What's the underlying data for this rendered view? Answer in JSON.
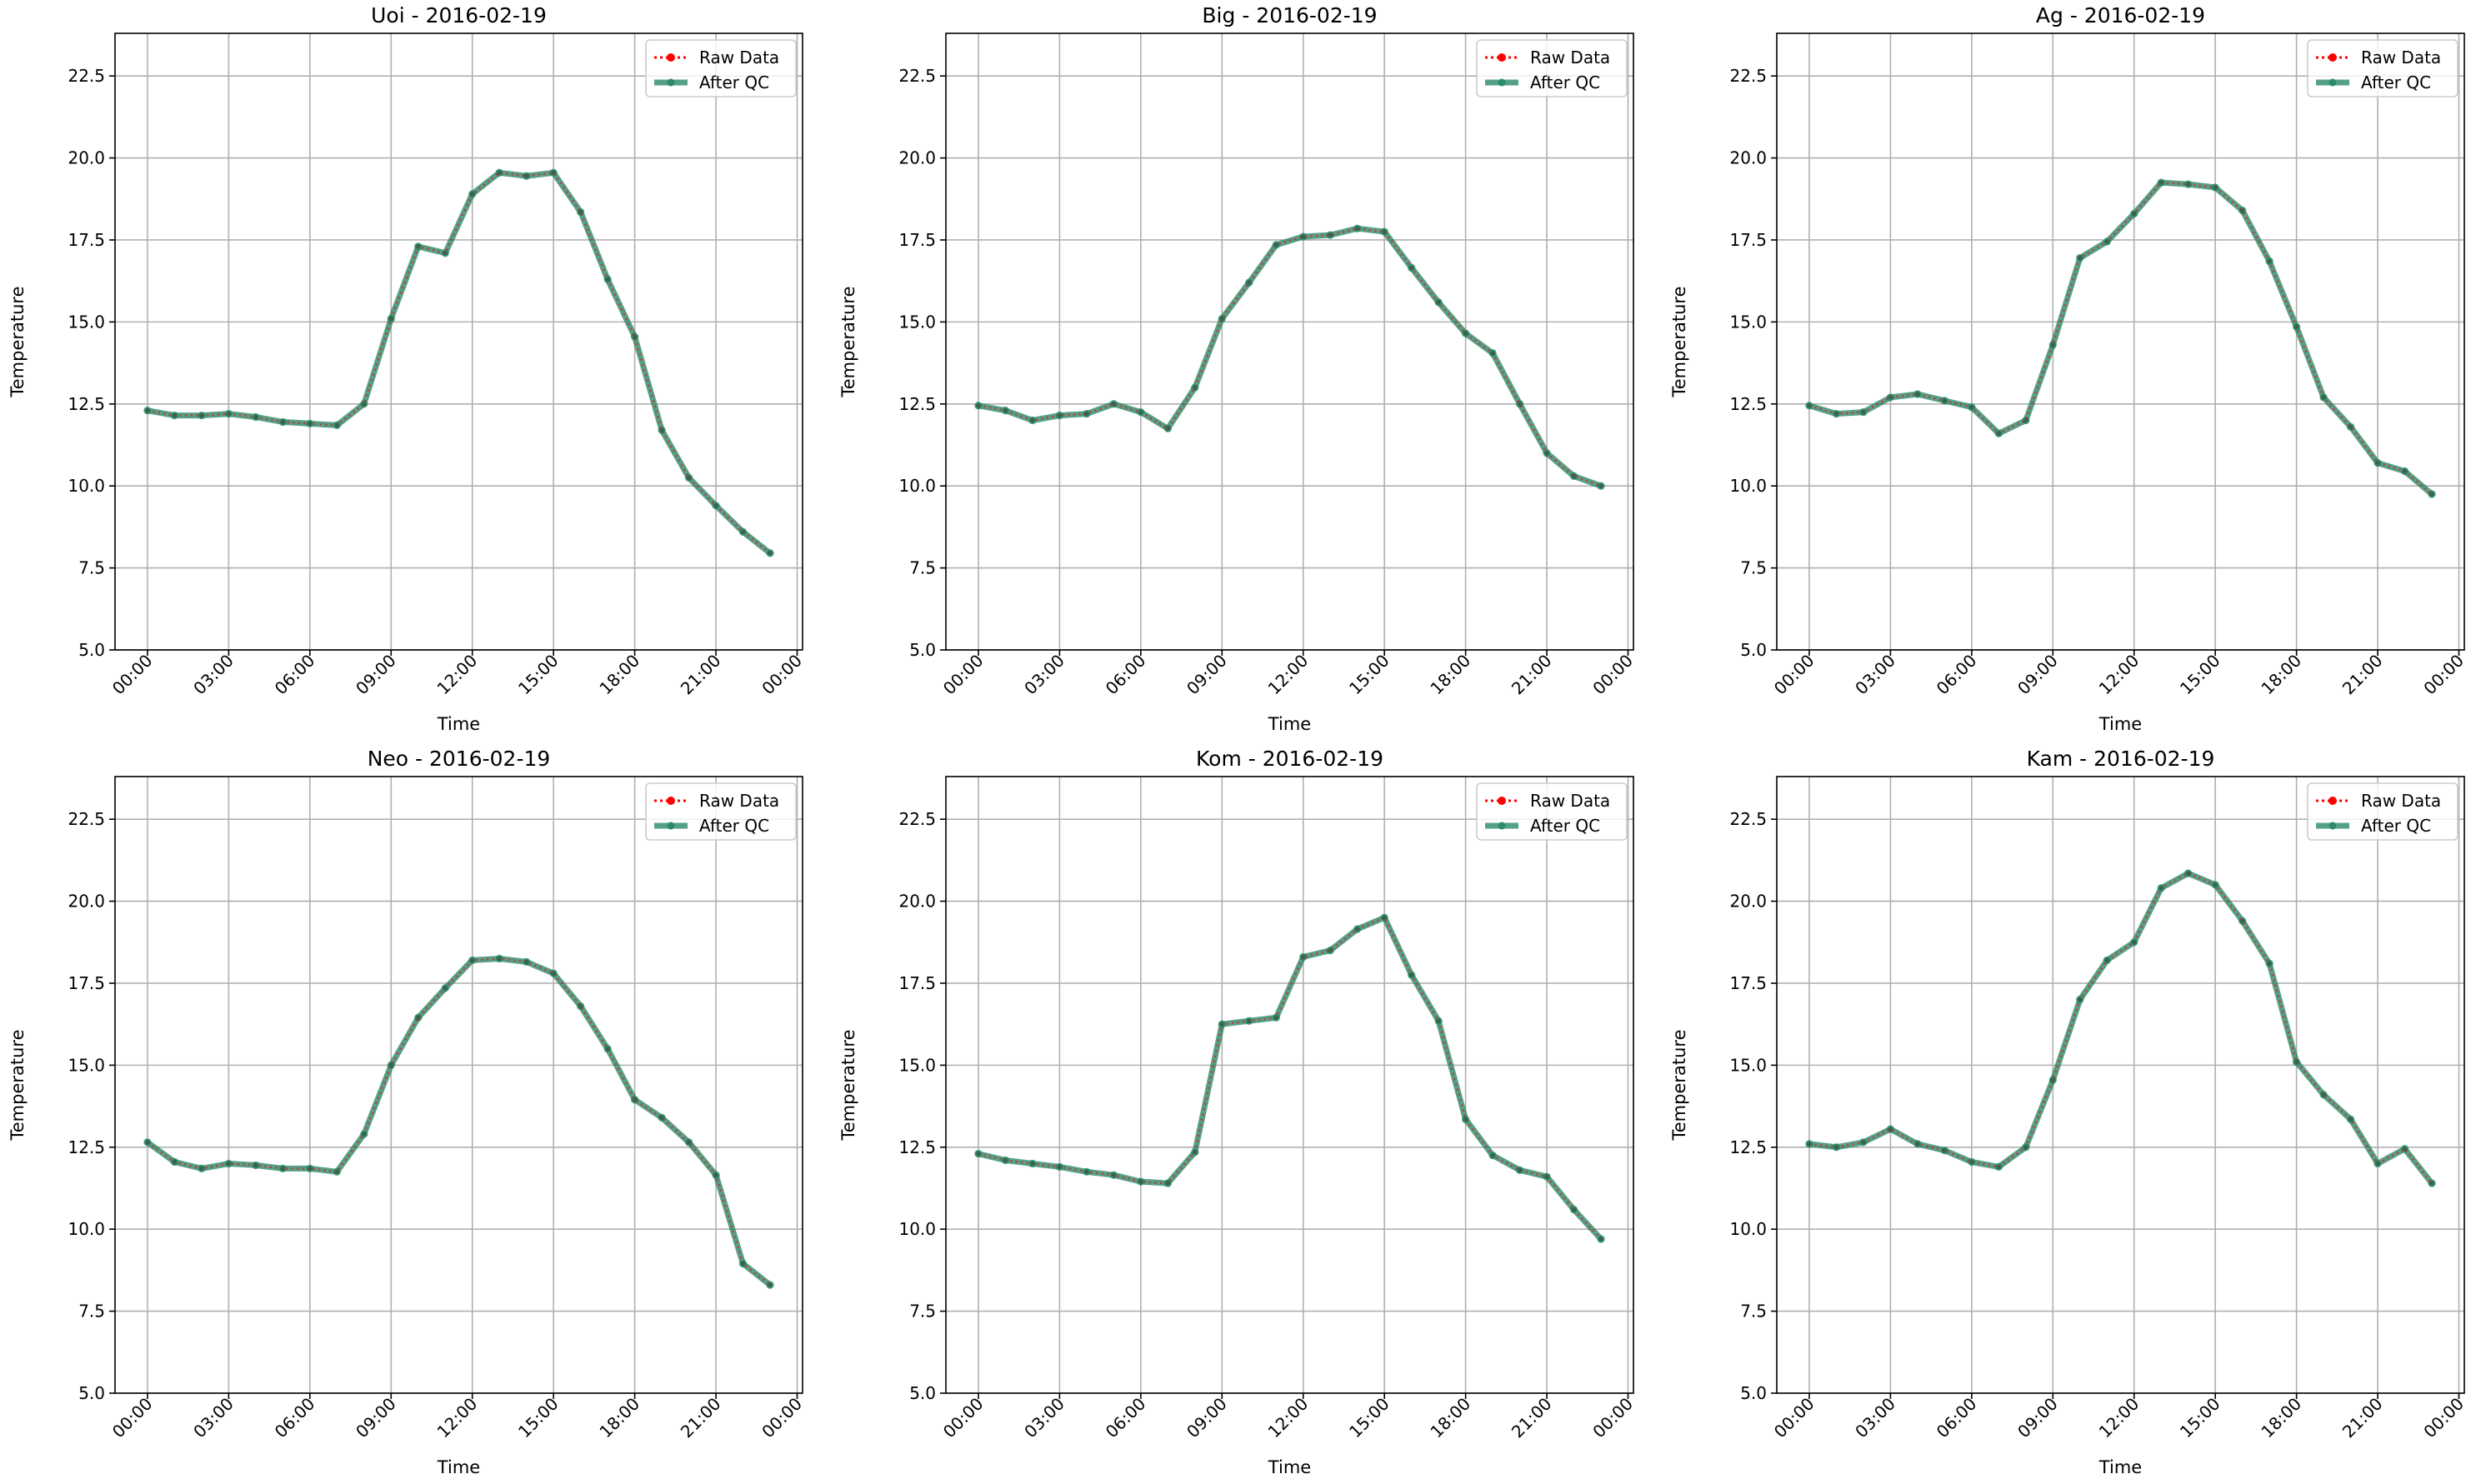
{
  "chart_data": [
    {
      "type": "line",
      "title": "Uoi - 2016-02-19",
      "xlabel": "Time",
      "ylabel": "Temperature",
      "ylim": [
        5.0,
        23.8
      ],
      "yticks": [
        "5.0",
        "7.5",
        "10.0",
        "12.5",
        "15.0",
        "17.5",
        "20.0",
        "22.5"
      ],
      "xticks": [
        "00:00",
        "03:00",
        "06:00",
        "09:00",
        "12:00",
        "15:00",
        "18:00",
        "21:00",
        "00:00"
      ],
      "xlim_hours": [
        -1.2,
        24.2
      ],
      "grid": true,
      "legend_position": "upper right",
      "x_hours": [
        0,
        1,
        2,
        3,
        4,
        5,
        6,
        7,
        8,
        9,
        10,
        11,
        12,
        13,
        14,
        15,
        16,
        17,
        18,
        19,
        20,
        21,
        22,
        23
      ],
      "series": [
        {
          "name": "Raw Data",
          "color": "#ff0000",
          "style": "dotted",
          "values": [
            12.3,
            12.15,
            12.15,
            12.2,
            12.1,
            11.95,
            11.9,
            11.85,
            12.5,
            15.1,
            17.3,
            17.1,
            18.9,
            19.55,
            19.45,
            19.55,
            18.35,
            16.3,
            14.55,
            11.7,
            10.25,
            9.4,
            8.6,
            7.95
          ]
        },
        {
          "name": "After QC",
          "color": "#2a8a6a",
          "style": "solid",
          "values": [
            12.3,
            12.15,
            12.15,
            12.2,
            12.1,
            11.95,
            11.9,
            11.85,
            12.5,
            15.1,
            17.3,
            17.1,
            18.9,
            19.55,
            19.45,
            19.55,
            18.35,
            16.3,
            14.55,
            11.7,
            10.25,
            9.4,
            8.6,
            7.95
          ]
        }
      ]
    },
    {
      "type": "line",
      "title": "Big - 2016-02-19",
      "xlabel": "Time",
      "ylabel": "Temperature",
      "ylim": [
        5.0,
        23.8
      ],
      "yticks": [
        "5.0",
        "7.5",
        "10.0",
        "12.5",
        "15.0",
        "17.5",
        "20.0",
        "22.5"
      ],
      "xticks": [
        "00:00",
        "03:00",
        "06:00",
        "09:00",
        "12:00",
        "15:00",
        "18:00",
        "21:00",
        "00:00"
      ],
      "xlim_hours": [
        -1.2,
        24.2
      ],
      "grid": true,
      "legend_position": "upper right",
      "x_hours": [
        0,
        1,
        2,
        3,
        4,
        5,
        6,
        7,
        8,
        9,
        10,
        11,
        12,
        13,
        14,
        15,
        16,
        17,
        18,
        19,
        20,
        21,
        22,
        23
      ],
      "series": [
        {
          "name": "Raw Data",
          "color": "#ff0000",
          "style": "dotted",
          "values": [
            12.45,
            12.3,
            12.0,
            12.15,
            12.2,
            12.5,
            12.25,
            11.75,
            13.0,
            15.1,
            16.2,
            17.35,
            17.6,
            17.65,
            17.85,
            17.75,
            16.65,
            15.6,
            14.65,
            14.05,
            12.5,
            11.0,
            10.3,
            10.0
          ]
        },
        {
          "name": "After QC",
          "color": "#2a8a6a",
          "style": "solid",
          "values": [
            12.45,
            12.3,
            12.0,
            12.15,
            12.2,
            12.5,
            12.25,
            11.75,
            13.0,
            15.1,
            16.2,
            17.35,
            17.6,
            17.65,
            17.85,
            17.75,
            16.65,
            15.6,
            14.65,
            14.05,
            12.5,
            11.0,
            10.3,
            10.0
          ]
        }
      ]
    },
    {
      "type": "line",
      "title": "Ag - 2016-02-19",
      "xlabel": "Time",
      "ylabel": "Temperature",
      "ylim": [
        5.0,
        23.8
      ],
      "yticks": [
        "5.0",
        "7.5",
        "10.0",
        "12.5",
        "15.0",
        "17.5",
        "20.0",
        "22.5"
      ],
      "xticks": [
        "00:00",
        "03:00",
        "06:00",
        "09:00",
        "12:00",
        "15:00",
        "18:00",
        "21:00",
        "00:00"
      ],
      "xlim_hours": [
        -1.2,
        24.2
      ],
      "grid": true,
      "legend_position": "upper right",
      "x_hours": [
        0,
        1,
        2,
        3,
        4,
        5,
        6,
        7,
        8,
        9,
        10,
        11,
        12,
        13,
        14,
        15,
        16,
        17,
        18,
        19,
        20,
        21,
        22,
        23
      ],
      "series": [
        {
          "name": "Raw Data",
          "color": "#ff0000",
          "style": "dotted",
          "values": [
            12.45,
            12.2,
            12.25,
            12.7,
            12.8,
            12.6,
            12.4,
            11.6,
            12.0,
            14.3,
            16.95,
            17.45,
            18.3,
            19.25,
            19.2,
            19.1,
            18.4,
            16.85,
            14.85,
            12.7,
            11.8,
            10.7,
            10.45,
            9.75
          ]
        },
        {
          "name": "After QC",
          "color": "#2a8a6a",
          "style": "solid",
          "values": [
            12.45,
            12.2,
            12.25,
            12.7,
            12.8,
            12.6,
            12.4,
            11.6,
            12.0,
            14.3,
            16.95,
            17.45,
            18.3,
            19.25,
            19.2,
            19.1,
            18.4,
            16.85,
            14.85,
            12.7,
            11.8,
            10.7,
            10.45,
            9.75
          ]
        }
      ]
    },
    {
      "type": "line",
      "title": "Neo - 2016-02-19",
      "xlabel": "Time",
      "ylabel": "Temperature",
      "ylim": [
        5.0,
        23.8
      ],
      "yticks": [
        "5.0",
        "7.5",
        "10.0",
        "12.5",
        "15.0",
        "17.5",
        "20.0",
        "22.5"
      ],
      "xticks": [
        "00:00",
        "03:00",
        "06:00",
        "09:00",
        "12:00",
        "15:00",
        "18:00",
        "21:00",
        "00:00"
      ],
      "xlim_hours": [
        -1.2,
        24.2
      ],
      "grid": true,
      "legend_position": "upper right",
      "x_hours": [
        0,
        1,
        2,
        3,
        4,
        5,
        6,
        7,
        8,
        9,
        10,
        11,
        12,
        13,
        14,
        15,
        16,
        17,
        18,
        19,
        20,
        21,
        22,
        23
      ],
      "series": [
        {
          "name": "Raw Data",
          "color": "#ff0000",
          "style": "dotted",
          "values": [
            12.65,
            12.05,
            11.85,
            12.0,
            11.95,
            11.85,
            11.85,
            11.75,
            12.9,
            15.0,
            16.45,
            17.35,
            18.2,
            18.25,
            18.15,
            17.8,
            16.8,
            15.5,
            13.95,
            13.4,
            12.65,
            11.65,
            8.95,
            8.3
          ]
        },
        {
          "name": "After QC",
          "color": "#2a8a6a",
          "style": "solid",
          "values": [
            12.65,
            12.05,
            11.85,
            12.0,
            11.95,
            11.85,
            11.85,
            11.75,
            12.9,
            15.0,
            16.45,
            17.35,
            18.2,
            18.25,
            18.15,
            17.8,
            16.8,
            15.5,
            13.95,
            13.4,
            12.65,
            11.65,
            8.95,
            8.3
          ]
        }
      ]
    },
    {
      "type": "line",
      "title": "Kom - 2016-02-19",
      "xlabel": "Time",
      "ylabel": "Temperature",
      "ylim": [
        5.0,
        23.8
      ],
      "yticks": [
        "5.0",
        "7.5",
        "10.0",
        "12.5",
        "15.0",
        "17.5",
        "20.0",
        "22.5"
      ],
      "xticks": [
        "00:00",
        "03:00",
        "06:00",
        "09:00",
        "12:00",
        "15:00",
        "18:00",
        "21:00",
        "00:00"
      ],
      "xlim_hours": [
        -1.2,
        24.2
      ],
      "grid": true,
      "legend_position": "upper right",
      "x_hours": [
        0,
        1,
        2,
        3,
        4,
        5,
        6,
        7,
        8,
        9,
        10,
        11,
        12,
        13,
        14,
        15,
        16,
        17,
        18,
        19,
        20,
        21,
        22,
        23
      ],
      "series": [
        {
          "name": "Raw Data",
          "color": "#ff0000",
          "style": "dotted",
          "values": [
            12.3,
            12.1,
            12.0,
            11.9,
            11.75,
            11.65,
            11.45,
            11.4,
            12.35,
            16.25,
            16.35,
            16.45,
            18.3,
            18.5,
            19.15,
            19.5,
            17.75,
            16.35,
            13.35,
            12.25,
            11.8,
            11.6,
            10.6,
            9.7
          ]
        },
        {
          "name": "After QC",
          "color": "#2a8a6a",
          "style": "solid",
          "values": [
            12.3,
            12.1,
            12.0,
            11.9,
            11.75,
            11.65,
            11.45,
            11.4,
            12.35,
            16.25,
            16.35,
            16.45,
            18.3,
            18.5,
            19.15,
            19.5,
            17.75,
            16.35,
            13.35,
            12.25,
            11.8,
            11.6,
            10.6,
            9.7
          ]
        }
      ]
    },
    {
      "type": "line",
      "title": "Kam - 2016-02-19",
      "xlabel": "Time",
      "ylabel": "Temperature",
      "ylim": [
        5.0,
        23.8
      ],
      "yticks": [
        "5.0",
        "7.5",
        "10.0",
        "12.5",
        "15.0",
        "17.5",
        "20.0",
        "22.5"
      ],
      "xticks": [
        "00:00",
        "03:00",
        "06:00",
        "09:00",
        "12:00",
        "15:00",
        "18:00",
        "21:00",
        "00:00"
      ],
      "xlim_hours": [
        -1.2,
        24.2
      ],
      "grid": true,
      "legend_position": "upper right",
      "x_hours": [
        0,
        1,
        2,
        3,
        4,
        5,
        6,
        7,
        8,
        9,
        10,
        11,
        12,
        13,
        14,
        15,
        16,
        17,
        18,
        19,
        20,
        21,
        22,
        23
      ],
      "series": [
        {
          "name": "Raw Data",
          "color": "#ff0000",
          "style": "dotted",
          "values": [
            12.6,
            12.5,
            12.65,
            13.05,
            12.6,
            12.4,
            12.05,
            11.9,
            12.5,
            14.55,
            17.0,
            18.2,
            18.75,
            20.4,
            20.85,
            20.5,
            19.4,
            18.1,
            15.1,
            14.1,
            13.35,
            12.0,
            12.45,
            11.4
          ]
        },
        {
          "name": "After QC",
          "color": "#2a8a6a",
          "style": "solid",
          "values": [
            12.6,
            12.5,
            12.65,
            13.05,
            12.6,
            12.4,
            12.05,
            11.9,
            12.5,
            14.55,
            17.0,
            18.2,
            18.75,
            20.4,
            20.85,
            20.5,
            19.4,
            18.1,
            15.1,
            14.1,
            13.35,
            12.0,
            12.45,
            11.4
          ]
        }
      ]
    }
  ]
}
